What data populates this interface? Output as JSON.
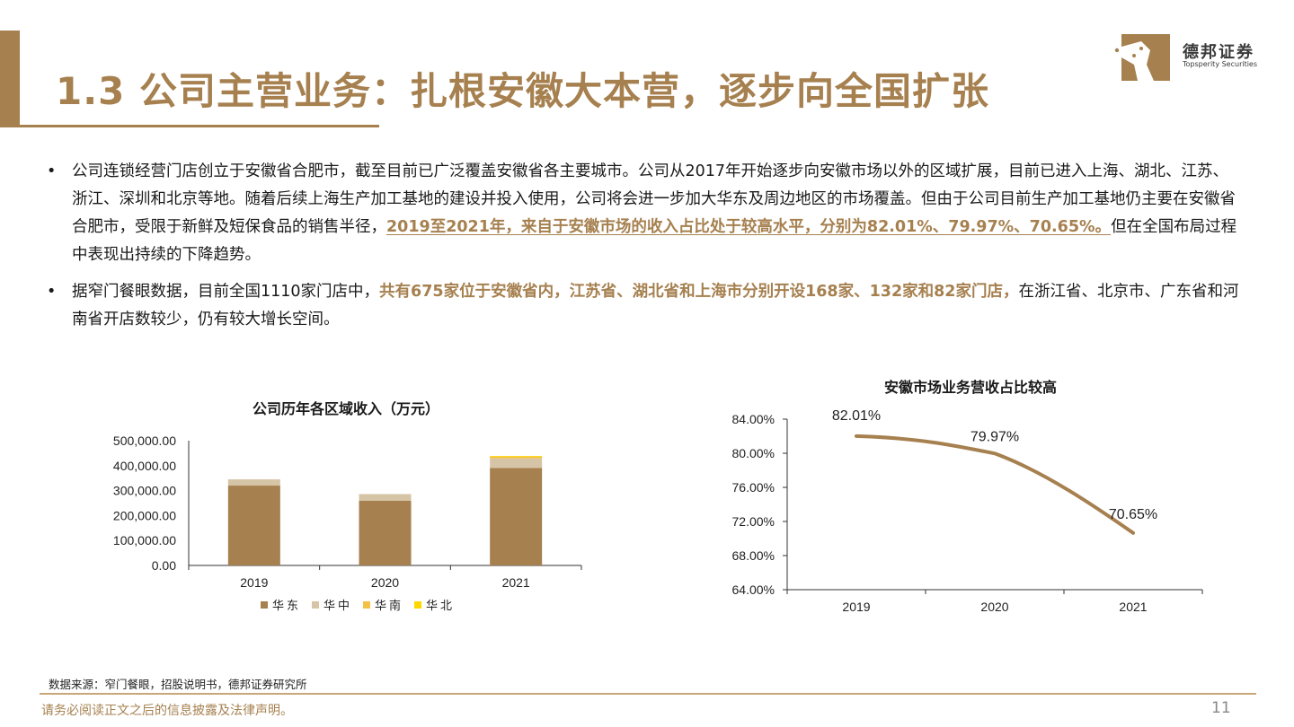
{
  "header": {
    "title": "1.3 公司主营业务：扎根安徽大本营，逐步向全国扩张",
    "logo_cn": "德邦证券",
    "logo_en": "Topsperity Securities",
    "accent_color": "#a6804f"
  },
  "bullets": [
    {
      "marker": "•",
      "text_1": "公司连锁经营门店创立于安徽省合肥市，截至目前已广泛覆盖安徽省各主要城市。公司从2017年开始逐步向安徽市场以外的区域扩展，目前已进入上海、湖北、江苏、浙江、深圳和北京等地。随着后续上海生产加工基地的建设并投入使用，公司将会进一步加大华东及周边地区的市场覆盖。但由于公司目前生产加工基地仍主要在安徽省合肥市，受限于新鲜及短保食品的销售半径，",
      "highlight": "2019至2021年，来自于安徽市场的收入占比处于较高水平，分别为82.01%、79.97%、70.65%。",
      "text_2": "但在全国布局过程中表现出持续的下降趋势。"
    },
    {
      "marker": "•",
      "text_1": "据窄门餐眼数据，目前全国1110家门店中，",
      "highlight": "共有675家位于安徽省内，江苏省、湖北省和上海市分别开设168家、132家和82家门店，",
      "text_2": "在浙江省、北京市、广东省和河南省开店数较少，仍有较大增长空间。"
    }
  ],
  "chart_data": [
    {
      "type": "bar",
      "stacked": true,
      "title": "公司历年各区域收入（万元）",
      "categories": [
        "2019",
        "2020",
        "2021"
      ],
      "series": [
        {
          "name": "华东",
          "values": [
            320000,
            259000,
            391000
          ],
          "color": "#a6804f"
        },
        {
          "name": "华中",
          "values": [
            25000,
            27000,
            38000
          ],
          "color": "#d6c4a6"
        },
        {
          "name": "华南",
          "values": [
            0,
            0,
            7000
          ],
          "color": "#f5c046"
        },
        {
          "name": "华北",
          "values": [
            0,
            0,
            3000
          ],
          "color": "#ffd700"
        }
      ],
      "ylim": [
        0,
        500000
      ],
      "y_ticks": [
        "0.00",
        "100,000.00",
        "200,000.00",
        "300,000.00",
        "400,000.00",
        "500,000.00"
      ],
      "legend_position": "bottom"
    },
    {
      "type": "line",
      "title": "安徽市场业务营收占比较高",
      "categories": [
        "2019",
        "2020",
        "2021"
      ],
      "series": [
        {
          "values": [
            82.01,
            79.97,
            70.65
          ],
          "labels": [
            "82.01%",
            "79.97%",
            "70.65%"
          ],
          "color": "#a6804f"
        }
      ],
      "ylim": [
        64,
        84
      ],
      "y_ticks": [
        "64.00%",
        "68.00%",
        "72.00%",
        "76.00%",
        "80.00%",
        "84.00%"
      ],
      "grid": false
    }
  ],
  "footer": {
    "source": "数据来源：窄门餐眼，招股说明书，德邦证券研究所",
    "disclaimer": "请务必阅读正文之后的信息披露及法律声明。",
    "page_number": "11"
  }
}
